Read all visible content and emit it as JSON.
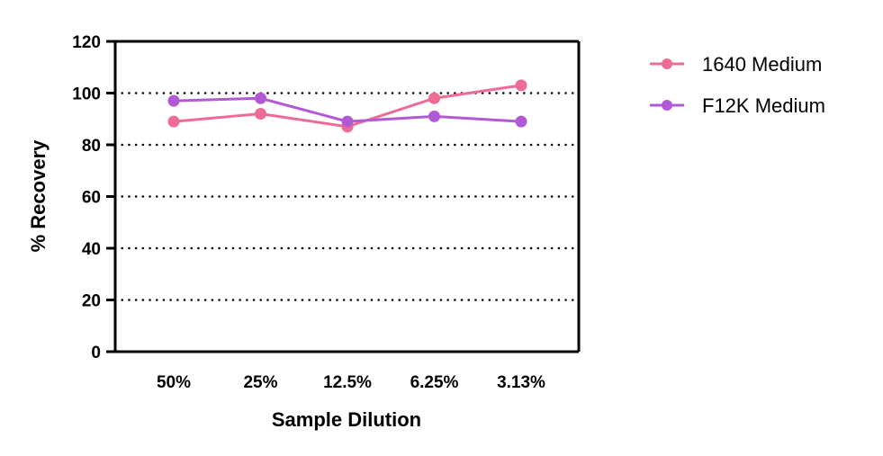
{
  "chart_data": {
    "type": "line",
    "title": "",
    "xlabel": "Sample Dilution",
    "ylabel": "% Recovery",
    "categories": [
      "50%",
      "25%",
      "12.5%",
      "6.25%",
      "3.13%"
    ],
    "ylim": [
      0,
      120
    ],
    "yticks": [
      0,
      20,
      40,
      60,
      80,
      100,
      120
    ],
    "grid": "dotted horizontal lines at 20, 40, 60, 80, 100",
    "legend_position": "right",
    "series": [
      {
        "name": "1640 Medium",
        "color": "#ee6b94",
        "values": [
          89,
          92,
          87,
          98,
          103
        ]
      },
      {
        "name": "F12K Medium",
        "color": "#b25ad6",
        "values": [
          97,
          98,
          89,
          91,
          89
        ]
      }
    ]
  }
}
